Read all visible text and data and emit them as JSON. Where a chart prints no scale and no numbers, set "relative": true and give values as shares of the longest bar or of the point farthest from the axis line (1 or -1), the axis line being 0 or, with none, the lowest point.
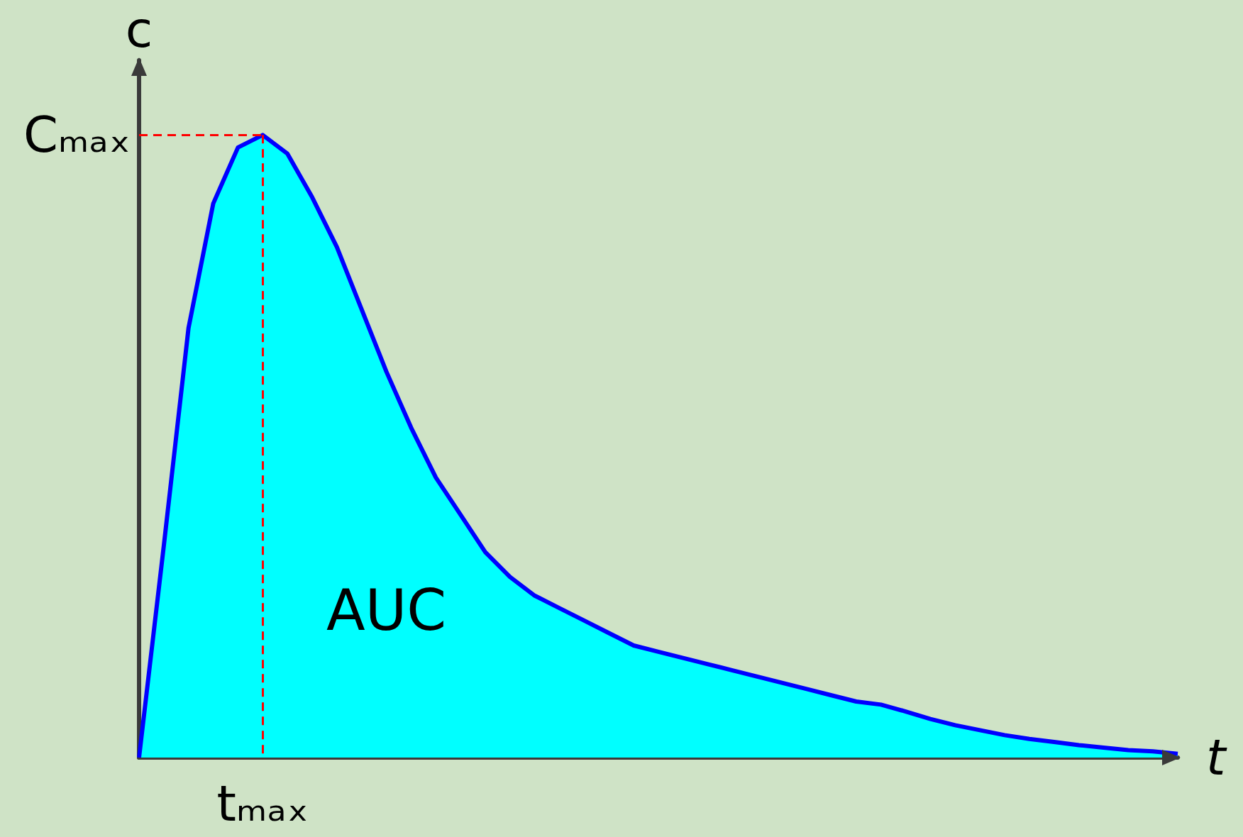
{
  "chart_data": {
    "type": "area",
    "relative": true,
    "xlabel": "t",
    "ylabel": "c",
    "categories": [
      null,
      null,
      null,
      null,
      null,
      null,
      null,
      null,
      null,
      null,
      null,
      null,
      null,
      null,
      null,
      null,
      null,
      null,
      null,
      null,
      null,
      null,
      null,
      null,
      null,
      null,
      null,
      null,
      null,
      null,
      null,
      null,
      null,
      null,
      null,
      null,
      null,
      null,
      null,
      null,
      null,
      null,
      null
    ],
    "series": [
      {
        "color": "#00ffff",
        "values": [
          0,
          0.34,
          0.69,
          0.89,
          0.98,
          1,
          0.97,
          0.9,
          0.82,
          0.72,
          0.62,
          0.53,
          0.45,
          0.39,
          0.33,
          0.29,
          0.26,
          0.24,
          0.22,
          0.2,
          0.18,
          0.17,
          0.16,
          0.15,
          0.14,
          0.13,
          0.12,
          0.11,
          0.1,
          0.09,
          0.085,
          0.074,
          0.062,
          0.052,
          0.044,
          0.036,
          0.03,
          0.025,
          0.02,
          0.016,
          0.012,
          0.01,
          0.006
        ]
      }
    ],
    "ref_lines": [
      {
        "axis": "y",
        "value": 1,
        "label": "Cₘₐₓ",
        "color": "#ff0000",
        "line_style": "dashed"
      },
      {
        "axis": "x",
        "label": "tₘₐₓ",
        "color": "#ff0000",
        "line_style": "dashed"
      }
    ],
    "annotations": [
      "AUC"
    ],
    "grid": false,
    "marker": "none"
  }
}
